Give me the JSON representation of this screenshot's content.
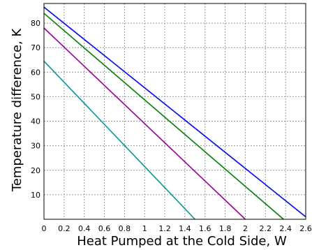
{
  "chart_data": {
    "type": "line",
    "title": "",
    "xlabel": "Heat Pumped at the Cold Side, W",
    "ylabel": "Temperature difference, K",
    "xlim": [
      0,
      2.6
    ],
    "ylim": [
      0,
      88
    ],
    "xticks": [
      0,
      0.2,
      0.4,
      0.6,
      0.8,
      1,
      1.2,
      1.4,
      1.6,
      1.8,
      2,
      2.2,
      2.4,
      2.6
    ],
    "xtick_labels": [
      "0",
      "0.2",
      "0.4",
      "0.6",
      "0.8",
      "1",
      "1.2",
      "1.4",
      "1.6",
      "1.8",
      "2",
      "2.2",
      "2.4",
      "2.6"
    ],
    "yticks": [
      10,
      20,
      30,
      40,
      50,
      60,
      70,
      80
    ],
    "ytick_labels": [
      "10",
      "20",
      "30",
      "40",
      "50",
      "60",
      "70",
      "80"
    ],
    "grid": true,
    "grid_style": "dashed",
    "legend": "none",
    "series": [
      {
        "color": "#0000ff",
        "x": [
          0,
          2.6
        ],
        "y": [
          86.5,
          1
        ]
      },
      {
        "color": "#008000",
        "x": [
          0,
          2.38
        ],
        "y": [
          84,
          0
        ]
      },
      {
        "color": "#990099",
        "x": [
          0,
          2.0
        ],
        "y": [
          78,
          0
        ]
      },
      {
        "color": "#009999",
        "x": [
          0,
          1.5
        ],
        "y": [
          64.5,
          0
        ]
      }
    ]
  }
}
